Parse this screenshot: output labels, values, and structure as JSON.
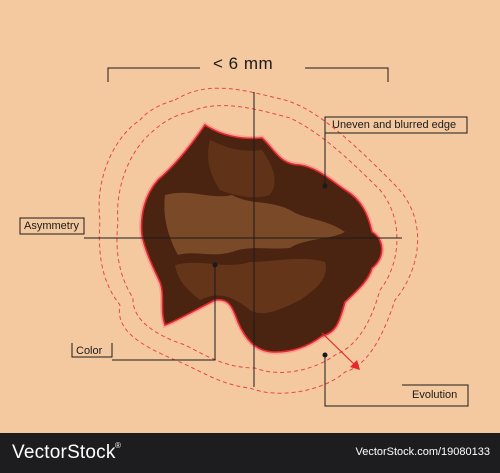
{
  "diagram": {
    "size_label": "< 6 mm",
    "labels": {
      "edge": "Uneven and blurred edge",
      "asymmetry": "Asymmetry",
      "color": "Color",
      "evolution": "Evolution"
    },
    "colors": {
      "skin": "#f5c9a0",
      "lesion_dark": "#4a2410",
      "lesion_mid": "#6a3a1c",
      "lesion_light": "#8a5530",
      "outline": "#e5262a",
      "dashed": "#e5474a",
      "line": "#1a1a1a"
    }
  },
  "footer": {
    "brand": "VectorStock",
    "registered": "®",
    "url": "VectorStock.com/19080133"
  }
}
